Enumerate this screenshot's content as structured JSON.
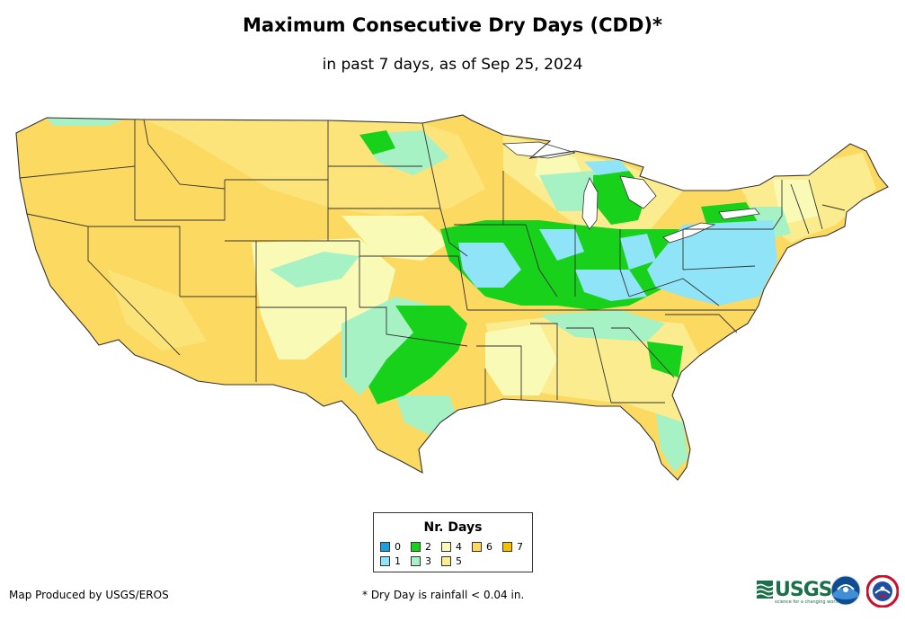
{
  "title": "Maximum Consecutive Dry Days (CDD)*",
  "subtitle": "in past 7 days, as of Sep 25, 2024",
  "legend": {
    "title": "Nr. Days",
    "items": [
      {
        "label": "0",
        "color": "#1a9fe0"
      },
      {
        "label": "1",
        "color": "#8fe4f7"
      },
      {
        "label": "2",
        "color": "#18d11a"
      },
      {
        "label": "3",
        "color": "#a6f2c4"
      },
      {
        "label": "4",
        "color": "#fafab7"
      },
      {
        "label": "5",
        "color": "#fbed8f"
      },
      {
        "label": "6",
        "color": "#fcd960"
      },
      {
        "label": "7",
        "color": "#f5c000"
      }
    ]
  },
  "credit": "Map Produced by USGS/EROS",
  "footnote": "* Dry Day is rainfall < 0.04 in.",
  "logos": {
    "usgs_text": "USGS",
    "usgs_tagline": "science for a changing world"
  },
  "map_colors": {
    "base": "#fcd960",
    "one_day": "#8fe4f7",
    "two_days": "#18d11a",
    "three_days": "#a6f2c4",
    "four_days": "#fafab7",
    "five_days": "#fbed8f",
    "boundary": "#333333"
  }
}
